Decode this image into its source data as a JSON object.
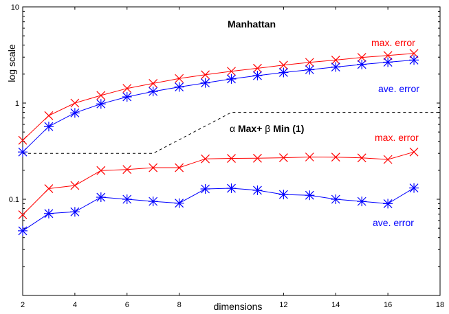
{
  "chart_data": {
    "type": "line",
    "title": "",
    "xlabel": "dimensions",
    "ylabel": "log  scale",
    "xlim": [
      2,
      18
    ],
    "ylim": [
      0.01,
      10
    ],
    "yscale": "log",
    "grid": false,
    "x_ticks": [
      "2",
      "4",
      "6",
      "8",
      "12",
      "14",
      "16",
      "18"
    ],
    "y_ticks": [
      {
        "value": 0.1,
        "label": "0.1"
      },
      {
        "value": 1,
        "label": "1"
      },
      {
        "value": 10,
        "label": "10"
      }
    ],
    "x": [
      2,
      3,
      4,
      5,
      6,
      7,
      8,
      9,
      10,
      11,
      12,
      13,
      14,
      15,
      16,
      17
    ],
    "series": [
      {
        "group": "Manhattan",
        "stat": "max",
        "color": "#ff0000",
        "marker": "x",
        "values": [
          0.41,
          0.74,
          1.0,
          1.2,
          1.42,
          1.6,
          1.8,
          1.97,
          2.14,
          2.3,
          2.48,
          2.65,
          2.8,
          2.98,
          3.12,
          3.28
        ]
      },
      {
        "group": "Manhattan",
        "stat": "ave",
        "color": "#0000ff",
        "marker": "asterisk",
        "values": [
          0.31,
          0.57,
          0.79,
          0.98,
          1.16,
          1.32,
          1.47,
          1.62,
          1.78,
          1.93,
          2.08,
          2.22,
          2.37,
          2.52,
          2.66,
          2.8
        ]
      },
      {
        "group": "alpha Max + beta Min (1)",
        "stat": "max",
        "color": "#ff0000",
        "marker": "x",
        "values": [
          0.069,
          0.129,
          0.139,
          0.199,
          0.204,
          0.213,
          0.213,
          0.263,
          0.266,
          0.267,
          0.27,
          0.275,
          0.274,
          0.269,
          0.259,
          0.31
        ]
      },
      {
        "group": "alpha Max + beta Min (1)",
        "stat": "ave",
        "color": "#0000ff",
        "marker": "asterisk",
        "values": [
          0.047,
          0.071,
          0.074,
          0.105,
          0.1,
          0.095,
          0.091,
          0.128,
          0.13,
          0.124,
          0.112,
          0.11,
          0.1,
          0.095,
          0.09,
          0.131
        ]
      }
    ],
    "dashed_line": {
      "color": "#000000",
      "points": [
        [
          2,
          0.3
        ],
        [
          7,
          0.3
        ],
        [
          10,
          0.8
        ],
        [
          18,
          0.8
        ]
      ]
    },
    "annotations": [
      {
        "text": "Manhattan",
        "color": "#000000",
        "bold": true
      },
      {
        "text": "max. error",
        "color": "#ff0000"
      },
      {
        "text": "ave. error",
        "color": "#0000ff"
      },
      {
        "prefix": "α",
        "main": "Max+",
        "middle": "β",
        "suffix": "Min (1)",
        "color": "#000000",
        "bold": true
      },
      {
        "text": "max. error",
        "color": "#ff0000"
      },
      {
        "text": "ave. error",
        "color": "#0000ff"
      }
    ]
  }
}
